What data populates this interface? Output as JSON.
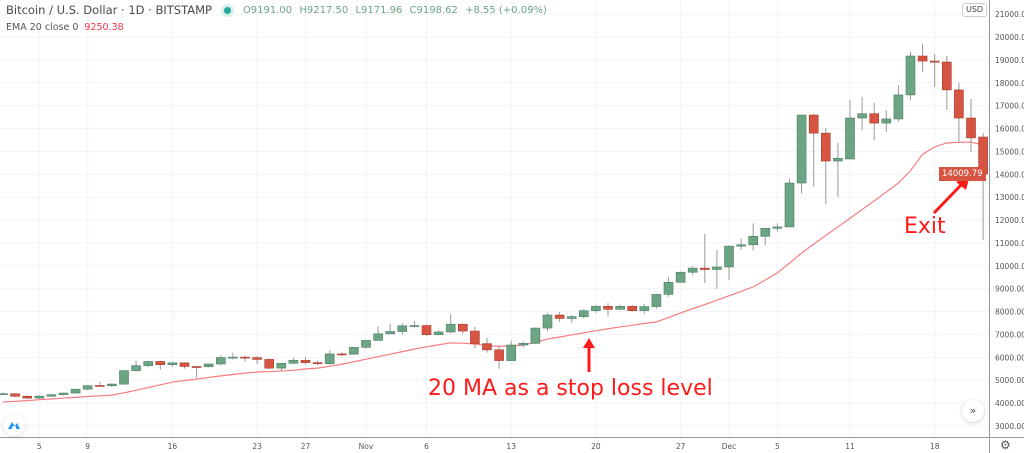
{
  "header": {
    "symbol_title": "Bitcoin / U.S. Dollar · 1D · BITSTAMP",
    "open": "O9191.00",
    "high": "H9217.50",
    "low": "L9171.96",
    "close": "C9198.62",
    "change": "+8.55 (+0.09%)",
    "status_color": "#26a69a"
  },
  "indicator": {
    "label": "EMA 20 close 0",
    "value": "9250.38",
    "color": "#f77c80"
  },
  "price_axis": {
    "currency": "USD",
    "last_price_label": "14009.79",
    "ticks": [
      "3000.00",
      "4000.00",
      "5000.00",
      "6000.00",
      "7000.00",
      "8000.00",
      "9000.00",
      "10000.00",
      "11000.00",
      "12000.00",
      "13000.00",
      "14000.00",
      "15000.00",
      "16000.00",
      "17000.00",
      "18000.00",
      "19000.00",
      "20000.00",
      "21000.00"
    ]
  },
  "annotations": {
    "stop_loss": "20 MA as a stop loss level",
    "exit": "Exit"
  },
  "controls": {
    "scroll_icon": "double-chevron-right",
    "settings_icon": "gear",
    "logo_icon": "tradingview-logo"
  },
  "chart_data": {
    "type": "candlestick",
    "title": "",
    "xlabel": "",
    "ylabel": "",
    "ylim": [
      2500,
      21500
    ],
    "grid": true,
    "colors": {
      "up": "#6ba583",
      "down": "#d75442",
      "ema": "#f77c80"
    },
    "x_ticks": [
      {
        "label": "5",
        "date": "Oct 5"
      },
      {
        "label": "9",
        "date": "Oct 9"
      },
      {
        "label": "16",
        "date": "Oct 16"
      },
      {
        "label": "23",
        "date": "Oct 23"
      },
      {
        "label": "27",
        "date": "Oct 27"
      },
      {
        "label": "Nov",
        "date": "Nov 1"
      },
      {
        "label": "6",
        "date": "Nov 6"
      },
      {
        "label": "13",
        "date": "Nov 13"
      },
      {
        "label": "20",
        "date": "Nov 20"
      },
      {
        "label": "27",
        "date": "Nov 27"
      },
      {
        "label": "Dec",
        "date": "Dec 1"
      },
      {
        "label": "5",
        "date": "Dec 5"
      },
      {
        "label": "11",
        "date": "Dec 11"
      },
      {
        "label": "18",
        "date": "Dec 18"
      }
    ],
    "columns": [
      "date",
      "open",
      "high",
      "low",
      "close"
    ],
    "candles": [
      [
        "Oct 2",
        4390,
        4470,
        4370,
        4410
      ],
      [
        "Oct 3",
        4410,
        4430,
        4260,
        4300
      ],
      [
        "Oct 4",
        4300,
        4340,
        4180,
        4220
      ],
      [
        "Oct 5",
        4220,
        4350,
        4160,
        4300
      ],
      [
        "Oct 6",
        4300,
        4410,
        4280,
        4370
      ],
      [
        "Oct 7",
        4370,
        4460,
        4320,
        4440
      ],
      [
        "Oct 8",
        4440,
        4620,
        4420,
        4610
      ],
      [
        "Oct 9",
        4610,
        4800,
        4560,
        4760
      ],
      [
        "Oct 10",
        4770,
        4920,
        4720,
        4760
      ],
      [
        "Oct 11",
        4760,
        4880,
        4710,
        4830
      ],
      [
        "Oct 12",
        4830,
        5440,
        4820,
        5420
      ],
      [
        "Oct 13",
        5420,
        5860,
        5380,
        5640
      ],
      [
        "Oct 14",
        5640,
        5850,
        5570,
        5820
      ],
      [
        "Oct 15",
        5820,
        5850,
        5470,
        5680
      ],
      [
        "Oct 16",
        5680,
        5780,
        5580,
        5760
      ],
      [
        "Oct 17",
        5760,
        5780,
        5510,
        5600
      ],
      [
        "Oct 18",
        5600,
        5610,
        5100,
        5590
      ],
      [
        "Oct 19",
        5590,
        5730,
        5560,
        5710
      ],
      [
        "Oct 20",
        5710,
        6080,
        5640,
        5990
      ],
      [
        "Oct 21",
        5990,
        6200,
        5910,
        6010
      ],
      [
        "Oct 22",
        6010,
        6080,
        5820,
        5990
      ],
      [
        "Oct 23",
        5990,
        6050,
        5700,
        5910
      ],
      [
        "Oct 24",
        5910,
        5950,
        5480,
        5530
      ],
      [
        "Oct 25",
        5530,
        5760,
        5400,
        5740
      ],
      [
        "Oct 26",
        5740,
        5980,
        5700,
        5870
      ],
      [
        "Oct 27",
        5870,
        6000,
        5700,
        5770
      ],
      [
        "Oct 28",
        5770,
        5860,
        5660,
        5720
      ],
      [
        "Oct 29",
        5720,
        6320,
        5680,
        6150
      ],
      [
        "Oct 30",
        6150,
        6220,
        6050,
        6140
      ],
      [
        "Oct 31",
        6140,
        6460,
        6110,
        6440
      ],
      [
        "Nov 1",
        6440,
        6770,
        6380,
        6740
      ],
      [
        "Nov 2",
        6740,
        7350,
        6740,
        7030
      ],
      [
        "Nov 3",
        7030,
        7450,
        7030,
        7130
      ],
      [
        "Nov 4",
        7130,
        7500,
        7000,
        7380
      ],
      [
        "Nov 5",
        7380,
        7590,
        7300,
        7390
      ],
      [
        "Nov 6",
        7390,
        7420,
        6940,
        6990
      ],
      [
        "Nov 7",
        6990,
        7190,
        6960,
        7110
      ],
      [
        "Nov 8",
        7110,
        7880,
        7050,
        7450
      ],
      [
        "Nov 9",
        7450,
        7460,
        7030,
        7150
      ],
      [
        "Nov 10",
        7150,
        7330,
        6400,
        6600
      ],
      [
        "Nov 11",
        6600,
        6850,
        6200,
        6330
      ],
      [
        "Nov 12",
        6330,
        6470,
        5500,
        5860
      ],
      [
        "Nov 13",
        5860,
        6730,
        5850,
        6540
      ],
      [
        "Nov 14",
        6540,
        6700,
        6440,
        6610
      ],
      [
        "Nov 15",
        6610,
        7310,
        6600,
        7280
      ],
      [
        "Nov 16",
        7280,
        7950,
        7150,
        7850
      ],
      [
        "Nov 17",
        7850,
        7990,
        7550,
        7700
      ],
      [
        "Nov 18",
        7700,
        7850,
        7500,
        7780
      ],
      [
        "Nov 19",
        7780,
        8100,
        7700,
        8040
      ],
      [
        "Nov 20",
        8040,
        8300,
        7950,
        8230
      ],
      [
        "Nov 21",
        8230,
        8370,
        7800,
        8100
      ],
      [
        "Nov 22",
        8100,
        8300,
        8080,
        8230
      ],
      [
        "Nov 23",
        8230,
        8290,
        8000,
        8040
      ],
      [
        "Nov 24",
        8040,
        8340,
        7900,
        8220
      ],
      [
        "Nov 25",
        8220,
        8770,
        8130,
        8750
      ],
      [
        "Nov 26",
        8750,
        9500,
        8650,
        9280
      ],
      [
        "Nov 27",
        9280,
        9750,
        9280,
        9720
      ],
      [
        "Nov 28",
        9720,
        9980,
        9600,
        9900
      ],
      [
        "Nov 29",
        9900,
        11390,
        9250,
        9840
      ],
      [
        "Nov 30",
        9840,
        10700,
        9000,
        9950
      ],
      [
        "Dec 1",
        9950,
        10900,
        9400,
        10860
      ],
      [
        "Dec 2",
        10860,
        11190,
        10700,
        10920
      ],
      [
        "Dec 3",
        10920,
        11850,
        10680,
        11290
      ],
      [
        "Dec 4",
        11290,
        11640,
        10900,
        11640
      ],
      [
        "Dec 5",
        11640,
        11850,
        11500,
        11700
      ],
      [
        "Dec 6",
        11700,
        13800,
        11700,
        13620
      ],
      [
        "Dec 7",
        13620,
        16600,
        13150,
        16590
      ],
      [
        "Dec 8",
        16590,
        16660,
        13450,
        15800
      ],
      [
        "Dec 9",
        15800,
        16020,
        12700,
        14580
      ],
      [
        "Dec 10",
        14580,
        15370,
        13010,
        14700
      ],
      [
        "Dec 11",
        14670,
        17250,
        14670,
        16460
      ],
      [
        "Dec 12",
        16460,
        17380,
        15940,
        16650
      ],
      [
        "Dec 13",
        16650,
        17120,
        15500,
        16240
      ],
      [
        "Dec 14",
        16240,
        16810,
        15850,
        16420
      ],
      [
        "Dec 15",
        16420,
        17900,
        16300,
        17470
      ],
      [
        "Dec 16",
        17470,
        19350,
        17250,
        19170
      ],
      [
        "Dec 17",
        19170,
        19700,
        18470,
        18950
      ],
      [
        "Dec 18",
        18950,
        19260,
        17820,
        18900
      ],
      [
        "Dec 19",
        18910,
        19170,
        16810,
        17690
      ],
      [
        "Dec 20",
        17690,
        18000,
        15370,
        16460
      ],
      [
        "Dec 21",
        16460,
        17290,
        14980,
        15590
      ],
      [
        "Dec 22",
        15630,
        15800,
        11130,
        14009.79
      ]
    ],
    "ema20": [
      4050,
      4080,
      4110,
      4150,
      4180,
      4220,
      4250,
      4290,
      4320,
      4350,
      4450,
      4560,
      4680,
      4800,
      4920,
      4990,
      5050,
      5120,
      5190,
      5250,
      5310,
      5360,
      5380,
      5400,
      5440,
      5490,
      5530,
      5610,
      5700,
      5810,
      5920,
      6030,
      6140,
      6250,
      6360,
      6460,
      6550,
      6630,
      6620,
      6580,
      6520,
      6480,
      6500,
      6540,
      6660,
      6800,
      6890,
      6980,
      7070,
      7160,
      7250,
      7330,
      7400,
      7480,
      7550,
      7740,
      7940,
      8130,
      8310,
      8500,
      8690,
      8880,
      9080,
      9380,
      9690,
      10120,
      10560,
      10950,
      11330,
      11700,
      12080,
      12460,
      12840,
      13230,
      13620,
      14160,
      14880,
      15200,
      15370,
      15400,
      15410,
      15280
    ]
  }
}
